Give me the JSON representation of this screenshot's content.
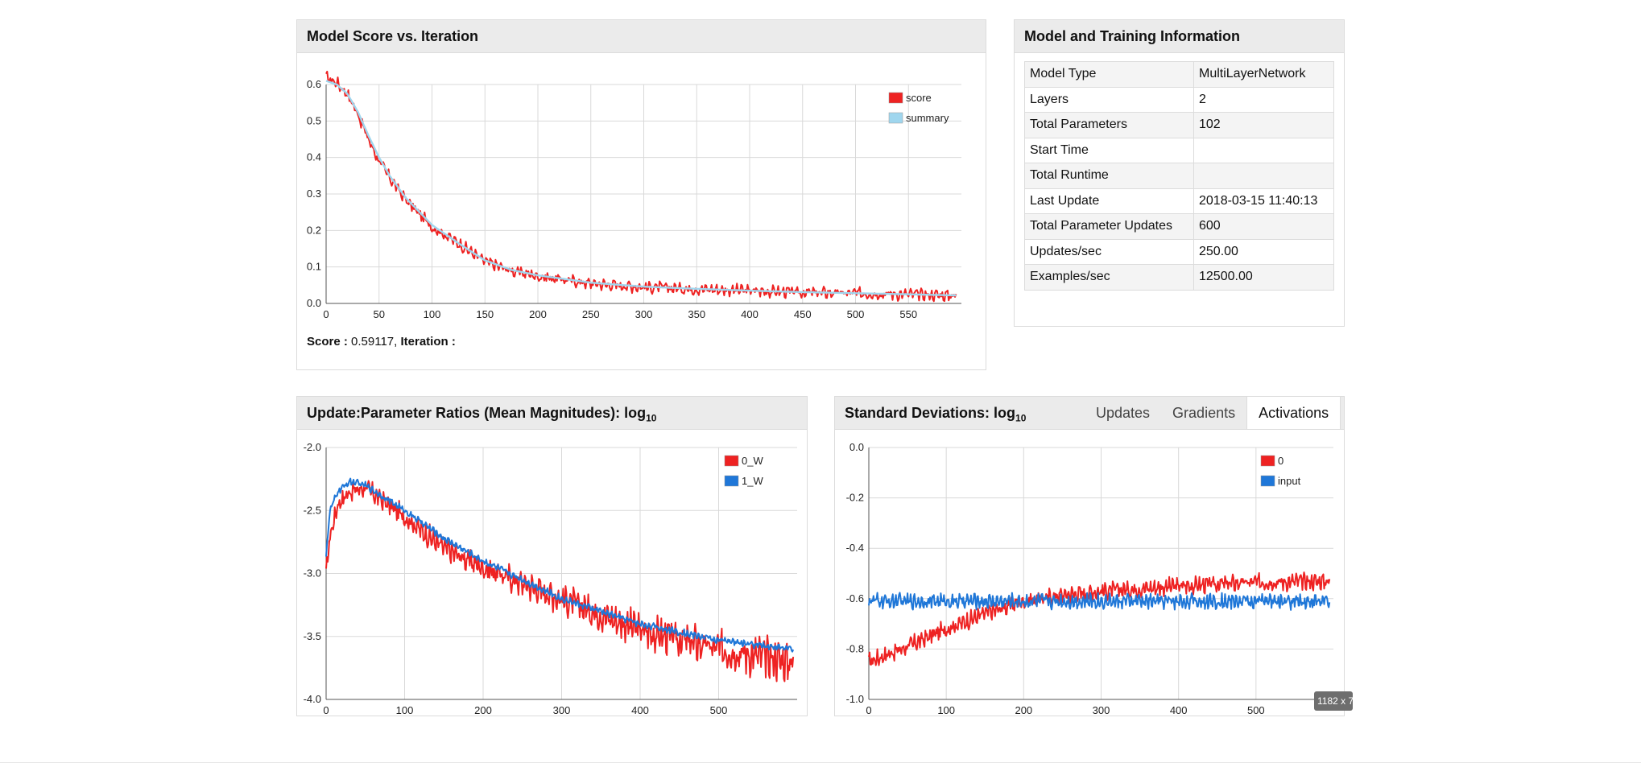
{
  "score_panel": {
    "title": "Model Score vs. Iteration",
    "score_label": "Score :",
    "score_value": " 0.59117, ",
    "iteration_label": "Iteration :",
    "iteration_value": ""
  },
  "info_panel": {
    "title": "Model and Training Information",
    "rows": [
      {
        "key": "Model Type",
        "value": "MultiLayerNetwork"
      },
      {
        "key": "Layers",
        "value": "2"
      },
      {
        "key": "Total Parameters",
        "value": "102"
      },
      {
        "key": "Start Time",
        "value": ""
      },
      {
        "key": "Total Runtime",
        "value": ""
      },
      {
        "key": "Last Update",
        "value": "2018-03-15 11:40:13"
      },
      {
        "key": "Total Parameter Updates",
        "value": "600"
      },
      {
        "key": "Updates/sec",
        "value": "250.00"
      },
      {
        "key": "Examples/sec",
        "value": "12500.00"
      }
    ]
  },
  "ratio_panel": {
    "title": "Update:Parameter Ratios (Mean Magnitudes): log",
    "title_sub": "10"
  },
  "stdev_panel": {
    "title": "Standard Deviations: log",
    "title_sub": "10",
    "tabs": [
      {
        "label": "Updates",
        "active": false
      },
      {
        "label": "Gradients",
        "active": false
      },
      {
        "label": "Activations",
        "active": true
      }
    ]
  },
  "overlay": {
    "size_badge": "1182 x 7"
  },
  "colors": {
    "red": "#ee2222",
    "blue": "#1f77d8",
    "summary": "#9fd6ee",
    "panel_header": "#ebebeb"
  },
  "chart_data": [
    {
      "id": "score",
      "type": "line",
      "xlim": [
        0,
        600
      ],
      "ylim": [
        0,
        0.6
      ],
      "xticks": [
        0,
        50,
        100,
        150,
        200,
        250,
        300,
        350,
        400,
        450,
        500,
        550
      ],
      "yticks": [
        0.0,
        0.1,
        0.2,
        0.3,
        0.4,
        0.5,
        0.6
      ],
      "ytick_labels": [
        "0.0",
        "0.1",
        "0.2",
        "0.3",
        "0.4",
        "0.5",
        "0.6"
      ],
      "grid": true,
      "legend": "top-right",
      "series": [
        {
          "name": "score",
          "color": "#ee2222",
          "noise": 0.012,
          "x": [
            0,
            10,
            20,
            30,
            40,
            50,
            60,
            75,
            100,
            125,
            150,
            175,
            200,
            250,
            300,
            350,
            400,
            450,
            500,
            550,
            595
          ],
          "y": [
            0.62,
            0.605,
            0.575,
            0.52,
            0.45,
            0.39,
            0.345,
            0.285,
            0.21,
            0.165,
            0.115,
            0.09,
            0.075,
            0.055,
            0.045,
            0.04,
            0.035,
            0.03,
            0.028,
            0.025,
            0.022
          ]
        },
        {
          "name": "summary",
          "color": "#9fd6ee",
          "x": [
            0,
            10,
            20,
            30,
            40,
            50,
            60,
            75,
            100,
            125,
            150,
            175,
            200,
            250,
            300,
            350,
            400,
            450,
            500,
            550,
            595
          ],
          "y": [
            0.61,
            0.6,
            0.575,
            0.525,
            0.46,
            0.4,
            0.35,
            0.29,
            0.215,
            0.165,
            0.118,
            0.092,
            0.077,
            0.057,
            0.046,
            0.04,
            0.035,
            0.031,
            0.028,
            0.025,
            0.022
          ]
        }
      ]
    },
    {
      "id": "ratios",
      "type": "line",
      "xlim": [
        0,
        600
      ],
      "ylim": [
        -4.0,
        -2.0
      ],
      "xticks": [
        0,
        100,
        200,
        300,
        400,
        500
      ],
      "yticks": [
        -2.0,
        -2.5,
        -3.0,
        -3.5,
        -4.0
      ],
      "ytick_labels": [
        "-2.0",
        "-2.5",
        "-3.0",
        "-3.5",
        "-4.0"
      ],
      "grid": true,
      "legend": "top-right",
      "series": [
        {
          "name": "0_W",
          "color": "#ee2222",
          "noise": 0.05,
          "noise_growth": 0.5,
          "x": [
            0,
            5,
            15,
            30,
            50,
            100,
            150,
            200,
            300,
            400,
            500,
            595
          ],
          "y": [
            -3.0,
            -2.7,
            -2.45,
            -2.35,
            -2.32,
            -2.55,
            -2.8,
            -2.95,
            -3.2,
            -3.45,
            -3.6,
            -3.7
          ]
        },
        {
          "name": "1_W",
          "color": "#1f77d8",
          "noise": 0.02,
          "x": [
            0,
            5,
            15,
            30,
            50,
            100,
            150,
            200,
            300,
            400,
            500,
            595
          ],
          "y": [
            -2.85,
            -2.5,
            -2.35,
            -2.27,
            -2.3,
            -2.5,
            -2.72,
            -2.9,
            -3.2,
            -3.4,
            -3.53,
            -3.6
          ]
        }
      ]
    },
    {
      "id": "stdevs",
      "type": "line",
      "xlim": [
        0,
        600
      ],
      "ylim": [
        -1.0,
        0.0
      ],
      "xticks": [
        0,
        100,
        200,
        300,
        400,
        500
      ],
      "yticks": [
        0.0,
        -0.2,
        -0.4,
        -0.6,
        -0.8,
        -1.0
      ],
      "ytick_labels": [
        "0.0",
        "-0.2",
        "-0.4",
        "-0.6",
        "-0.8",
        "-1.0"
      ],
      "grid": true,
      "legend": "top-right",
      "series": [
        {
          "name": "0",
          "color": "#ee2222",
          "noise": 0.025,
          "x": [
            0,
            50,
            100,
            150,
            200,
            250,
            300,
            400,
            500,
            595
          ],
          "y": [
            -0.85,
            -0.79,
            -0.72,
            -0.66,
            -0.61,
            -0.585,
            -0.57,
            -0.55,
            -0.535,
            -0.53
          ]
        },
        {
          "name": "input",
          "color": "#1f77d8",
          "noise": 0.022,
          "x": [
            0,
            595
          ],
          "y": [
            -0.61,
            -0.61
          ]
        }
      ]
    }
  ]
}
